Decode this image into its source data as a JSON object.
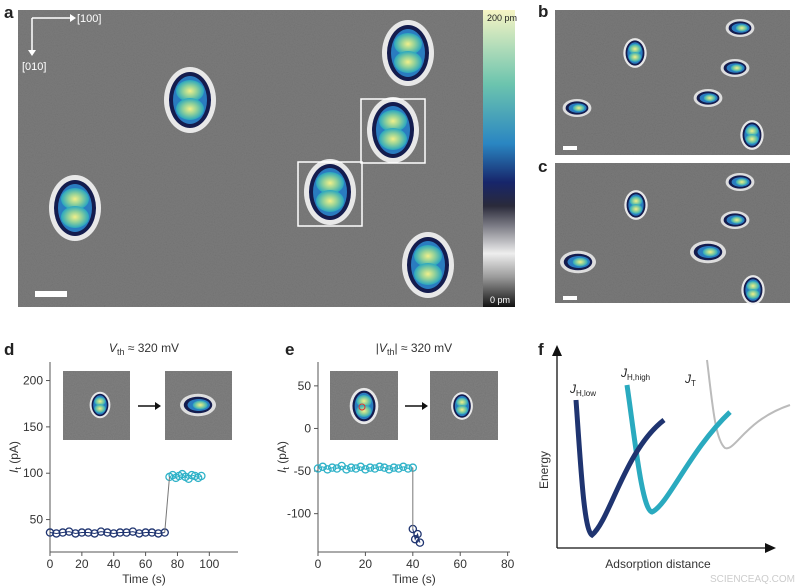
{
  "panels": {
    "a": "a",
    "b": "b",
    "c": "c",
    "d": "d",
    "e": "e",
    "f": "f"
  },
  "image_a": {
    "direction_x": "[100]",
    "direction_y": "[010]",
    "colorbar_max": "200 pm",
    "colorbar_min": "0 pm"
  },
  "diagram_f": {
    "ylabel": "Energy",
    "xlabel": "Adsorption distance",
    "curves": [
      {
        "main": "J",
        "sub": "H,low"
      },
      {
        "main": "J",
        "sub": "H,high"
      },
      {
        "main": "J",
        "sub": "T"
      }
    ]
  },
  "watermark": "SCIENCEAQ.COM",
  "chart_data": [
    {
      "type": "scatter",
      "title": {
        "pre": "",
        "main": "V",
        "sub": "th",
        "rest": " ≈ 320 mV"
      },
      "xlabel": "Time (s)",
      "ylabel": {
        "main": "I",
        "sub": "t",
        "rest": " (pA)"
      },
      "xlim": [
        0,
        118
      ],
      "ylim": [
        15,
        220
      ],
      "xticks": [
        0,
        20,
        40,
        60,
        80,
        100
      ],
      "yticks": [
        50,
        100,
        150,
        200
      ],
      "series": [
        {
          "color": "#1f3470",
          "x": [
            0,
            4,
            8,
            12,
            16,
            20,
            24,
            28,
            32,
            36,
            40,
            44,
            48,
            52,
            56,
            60,
            64,
            68,
            72
          ],
          "values": [
            36,
            35,
            36,
            37,
            35,
            36,
            36,
            35,
            37,
            36,
            35,
            36,
            36,
            37,
            35,
            36,
            36,
            35,
            36
          ]
        },
        {
          "color": "#2fb2c8",
          "x": [
            75,
            77,
            79,
            81,
            83,
            85,
            87,
            89,
            91,
            93,
            95
          ],
          "values": [
            96,
            98,
            95,
            97,
            99,
            96,
            94,
            98,
            97,
            95,
            97
          ]
        }
      ]
    },
    {
      "type": "scatter",
      "title": {
        "pre": "|",
        "main": "V",
        "sub": "th",
        "rest": "| ≈ 320 mV"
      },
      "xlabel": "Time (s)",
      "ylabel": {
        "main": "I",
        "sub": "t",
        "rest": " (pA)"
      },
      "xlim": [
        0,
        81
      ],
      "ylim": [
        -145,
        78
      ],
      "xticks": [
        0,
        20,
        40,
        60,
        80
      ],
      "yticks": [
        -100,
        -50,
        0,
        50
      ],
      "series": [
        {
          "color": "#2fb2c8",
          "x": [
            0,
            2,
            4,
            6,
            8,
            10,
            12,
            14,
            16,
            18,
            20,
            22,
            24,
            26,
            28,
            30,
            32,
            34,
            36,
            38,
            40
          ],
          "values": [
            -47,
            -45,
            -48,
            -46,
            -47,
            -44,
            -48,
            -46,
            -47,
            -45,
            -48,
            -46,
            -47,
            -45,
            -46,
            -48,
            -46,
            -47,
            -45,
            -47,
            -46
          ]
        },
        {
          "color": "#1f3470",
          "x": [
            40,
            41,
            42,
            43
          ],
          "values": [
            -118,
            -130,
            -124,
            -134
          ]
        }
      ]
    }
  ]
}
